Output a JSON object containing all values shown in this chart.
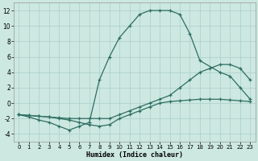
{
  "xlabel": "Humidex (Indice chaleur)",
  "background_color": "#cce8e0",
  "line_color": "#2e6e62",
  "grid_color": "#aacfc8",
  "xlim": [
    -0.5,
    23.5
  ],
  "ylim": [
    -5,
    13
  ],
  "yticks": [
    -4,
    -2,
    0,
    2,
    4,
    6,
    8,
    10,
    12
  ],
  "xticks": [
    0,
    1,
    2,
    3,
    4,
    5,
    6,
    7,
    8,
    9,
    10,
    11,
    12,
    13,
    14,
    15,
    16,
    17,
    18,
    19,
    20,
    21,
    22,
    23
  ],
  "line1_x": [
    0,
    1,
    2,
    3,
    4,
    5,
    6,
    7,
    8,
    9,
    10,
    11,
    12,
    13,
    14,
    15,
    16,
    17,
    18,
    20,
    21,
    22,
    23
  ],
  "line1_y": [
    -1.5,
    -1.8,
    -2.2,
    -2.5,
    -3.0,
    -3.5,
    -3.0,
    -2.5,
    3.0,
    6.0,
    8.5,
    10.0,
    11.5,
    12.0,
    12.0,
    12.0,
    11.5,
    9.0,
    5.5,
    4.0,
    3.5,
    2.0,
    0.5
  ],
  "line2_x": [
    0,
    1,
    2,
    3,
    4,
    5,
    6,
    7,
    8,
    9,
    10,
    11,
    12,
    13,
    14,
    15,
    16,
    17,
    18,
    19,
    20,
    21,
    22,
    23
  ],
  "line2_y": [
    -1.5,
    -1.6,
    -1.7,
    -1.8,
    -1.9,
    -2.0,
    -2.0,
    -2.0,
    -2.0,
    -2.0,
    -1.5,
    -1.0,
    -0.5,
    0.0,
    0.5,
    1.0,
    2.0,
    3.0,
    4.0,
    4.5,
    5.0,
    5.0,
    4.5,
    3.0
  ],
  "line3_x": [
    0,
    1,
    2,
    3,
    4,
    5,
    6,
    7,
    8,
    9,
    10,
    11,
    12,
    13,
    14,
    15,
    16,
    17,
    18,
    19,
    20,
    21,
    22,
    23
  ],
  "line3_y": [
    -1.5,
    -1.6,
    -1.7,
    -1.8,
    -2.0,
    -2.2,
    -2.5,
    -2.8,
    -3.0,
    -2.8,
    -2.0,
    -1.5,
    -1.0,
    -0.5,
    0.0,
    0.2,
    0.3,
    0.4,
    0.5,
    0.5,
    0.5,
    0.4,
    0.3,
    0.2
  ]
}
